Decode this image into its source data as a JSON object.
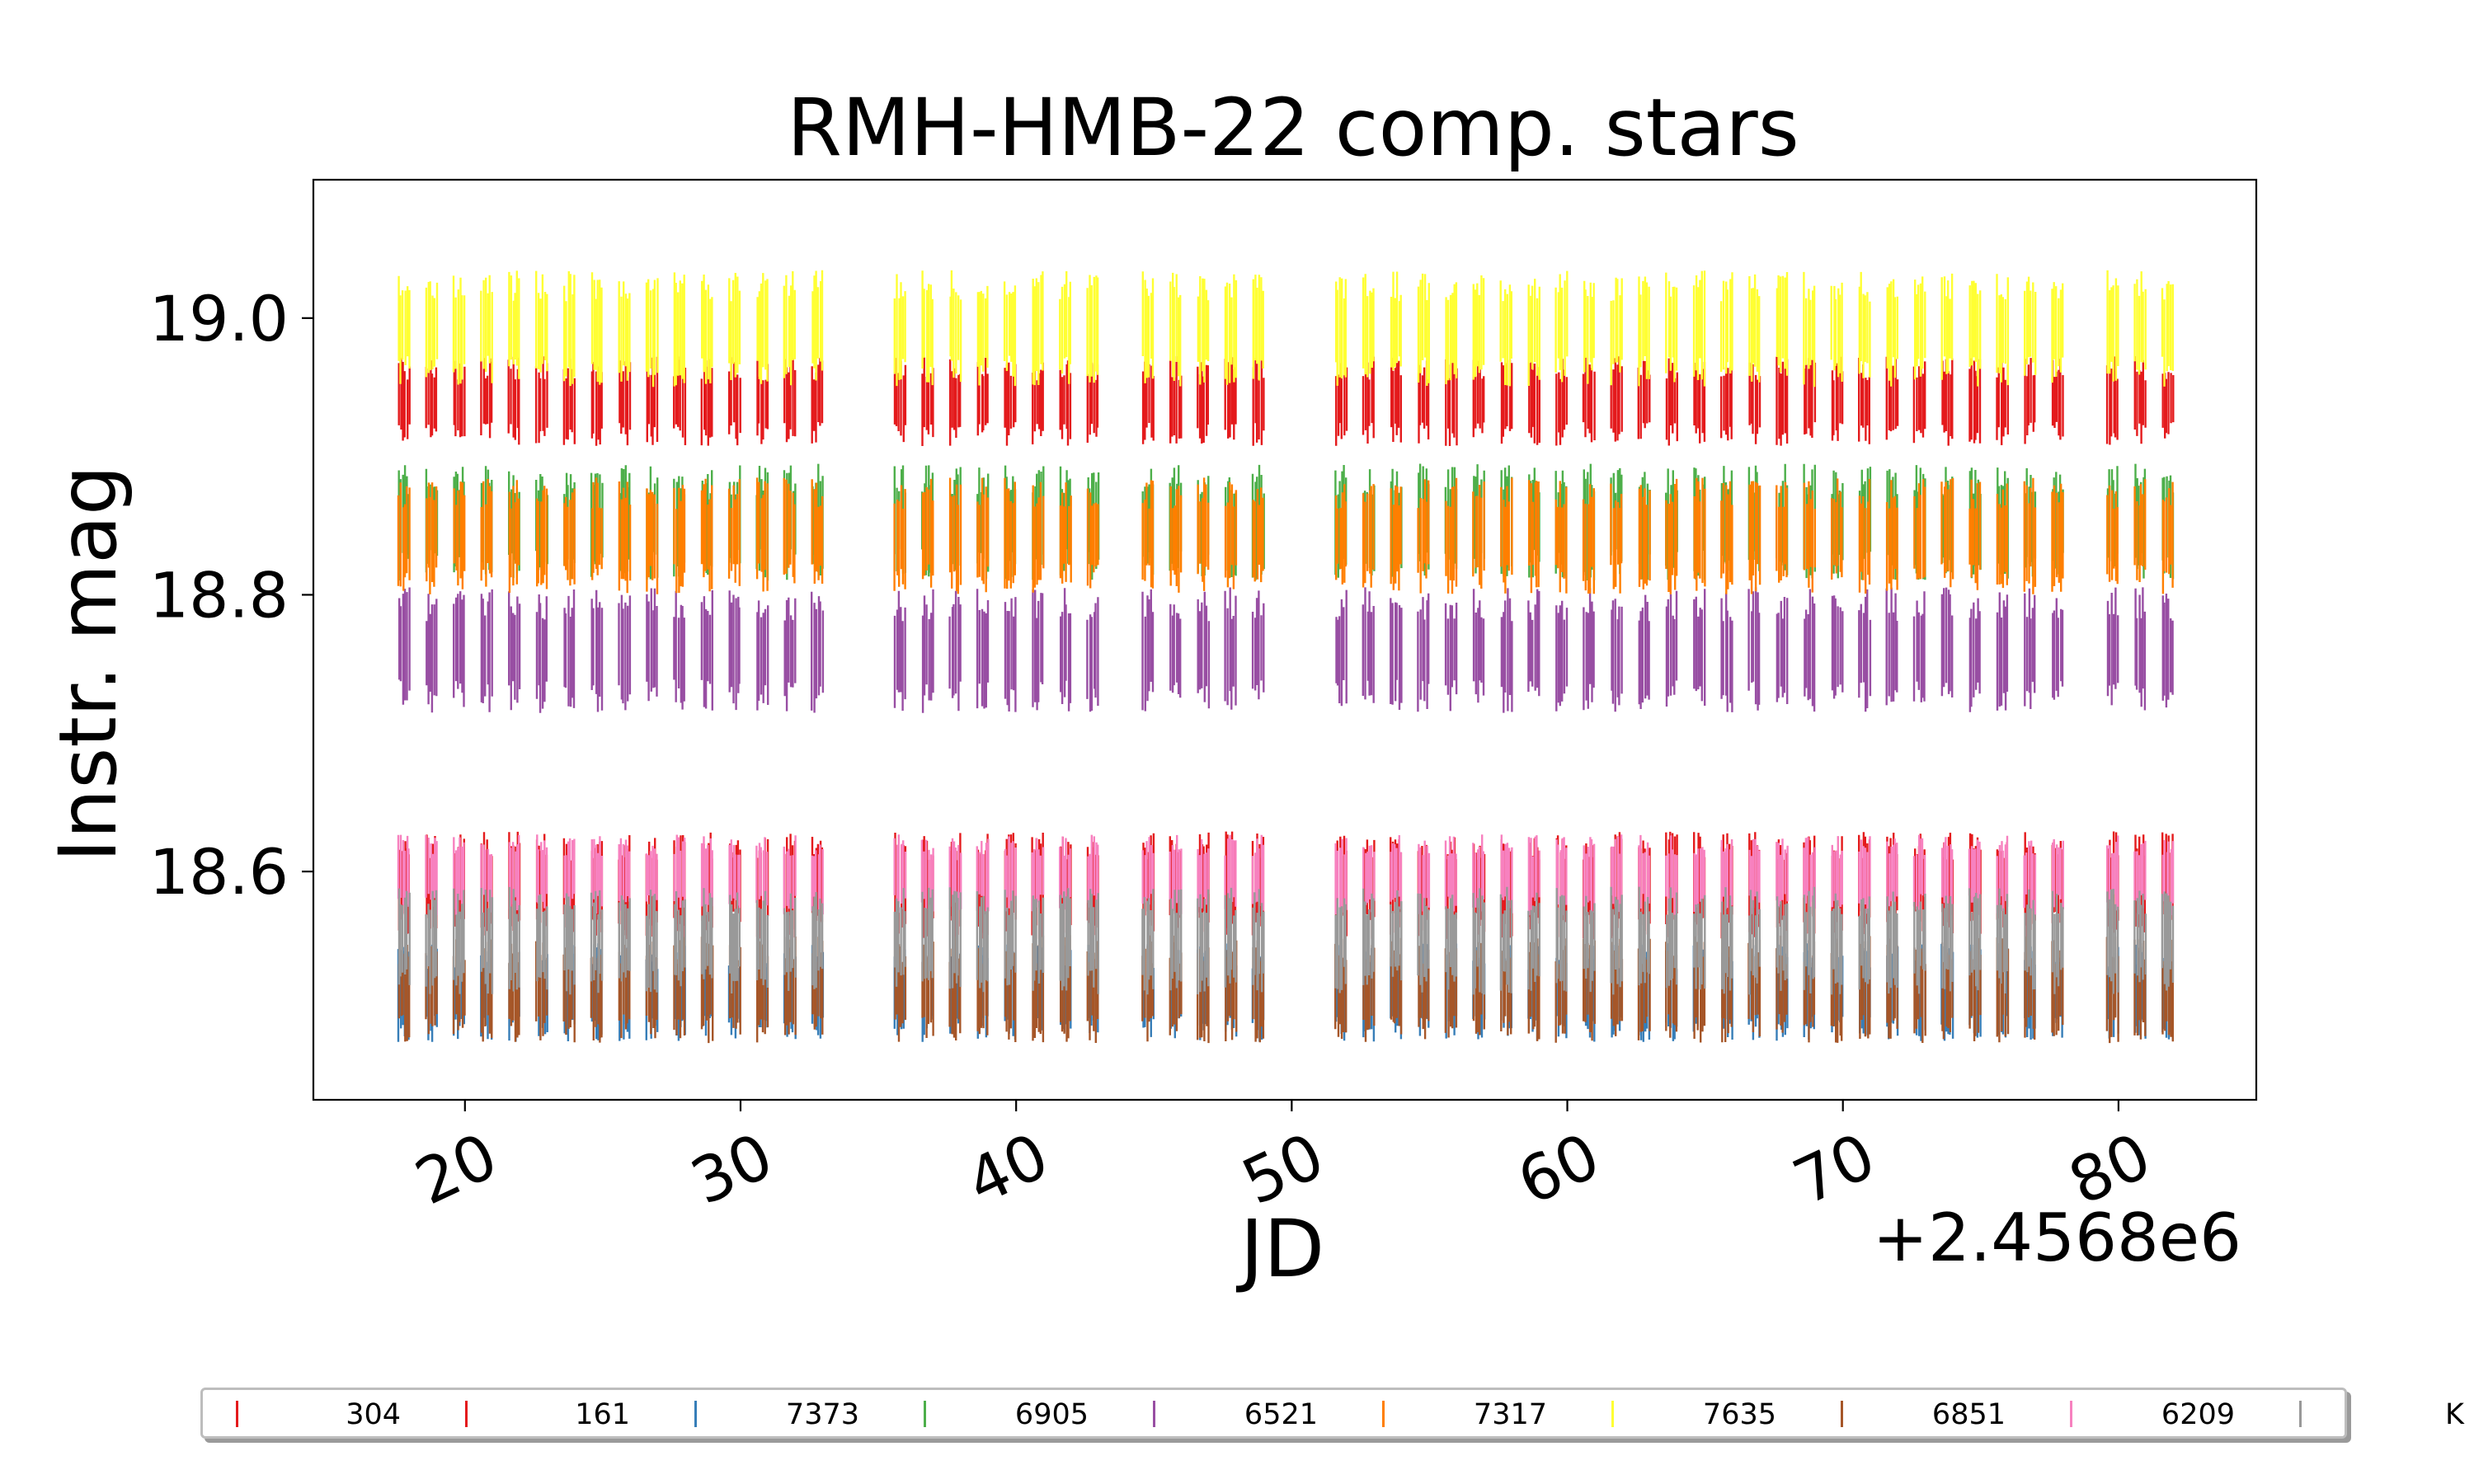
{
  "chart_data": {
    "type": "line",
    "title": "RMH-HMB-22 comp. stars",
    "xlabel": "JD",
    "ylabel": "Instr. mag",
    "x_offset_label": "+2.4568e6",
    "xlim": [
      14.5,
      85
    ],
    "ylim": [
      19.1,
      18.435
    ],
    "y_inverted": true,
    "x_ticks": [
      20,
      30,
      40,
      50,
      60,
      70,
      80
    ],
    "x_tick_labels": [
      "20",
      "30",
      "40",
      "50",
      "60",
      "70",
      "80"
    ],
    "y_ticks": [
      18.6,
      18.8,
      19.0
    ],
    "y_tick_labels": [
      "18.6",
      "18.8",
      "19.0"
    ],
    "grid": false,
    "legend_position": "bottom",
    "series": [
      {
        "name": "304",
        "color": "#e41a1c",
        "mag_range": [
          18.56,
          18.62
        ]
      },
      {
        "name": "161",
        "color": "#e41a1c",
        "mag_range": [
          18.915,
          18.965
        ]
      },
      {
        "name": "7373",
        "color": "#377eb8",
        "mag_range": [
          18.485,
          18.54
        ]
      },
      {
        "name": "6905",
        "color": "#4daf4a",
        "mag_range": [
          18.82,
          18.885
        ]
      },
      {
        "name": "6521",
        "color": "#984ea3",
        "mag_range": [
          18.725,
          18.795
        ]
      },
      {
        "name": "7317",
        "color": "#ff7f00",
        "mag_range": [
          18.81,
          18.875
        ]
      },
      {
        "name": "7635",
        "color": "#ffff33",
        "mag_range": [
          18.96,
          19.025
        ]
      },
      {
        "name": "6851",
        "color": "#a65628",
        "mag_range": [
          18.485,
          18.545
        ]
      },
      {
        "name": "6209",
        "color": "#f781bf",
        "mag_range": [
          18.575,
          18.62
        ]
      },
      {
        "name": "K",
        "color": "#999999",
        "mag_range": [
          18.52,
          18.58
        ]
      }
    ],
    "observation_nights": [
      17.6,
      18.6,
      19.6,
      20.6,
      21.6,
      22.6,
      23.6,
      24.6,
      25.6,
      26.6,
      27.6,
      28.6,
      29.6,
      30.6,
      31.6,
      32.6,
      35.6,
      36.6,
      37.6,
      38.6,
      39.6,
      40.6,
      41.6,
      42.6,
      44.6,
      45.6,
      46.6,
      47.6,
      48.6,
      51.6,
      52.6,
      53.6,
      54.6,
      55.6,
      56.6,
      57.6,
      58.6,
      59.6,
      60.6,
      61.6,
      62.6,
      63.6,
      64.6,
      65.6,
      66.6,
      67.6,
      68.6,
      69.6,
      70.6,
      71.6,
      72.6,
      73.6,
      74.6,
      75.6,
      76.6,
      77.6,
      79.6,
      80.6,
      81.6
    ]
  }
}
